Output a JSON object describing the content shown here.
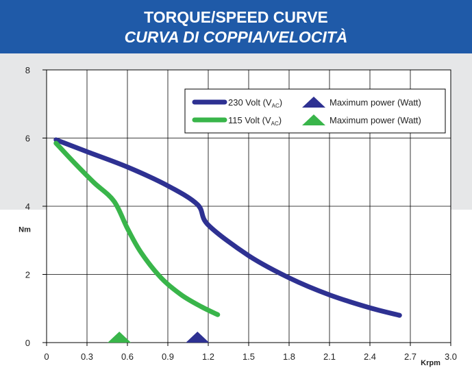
{
  "header": {
    "title": "TORQUE/SPEED CURVE",
    "subtitle": "CURVA DI COPPIA/VELOCITÀ",
    "background": "#1f5aa8"
  },
  "chart_data": {
    "type": "line",
    "title": "TORQUE/SPEED CURVE",
    "subtitle": "CURVA DI COPPIA/VELOCITÀ",
    "xlabel": "Krpm",
    "ylabel": "Nm",
    "xlim": [
      0,
      3.0
    ],
    "ylim": [
      0,
      8
    ],
    "x_ticks": [
      "0",
      "0.3",
      "0.6",
      "0.9",
      "1.2",
      "1.5",
      "1.8",
      "2.1",
      "2.4",
      "2.7",
      "3.0"
    ],
    "y_ticks": [
      "0",
      "2",
      "4",
      "6",
      "8"
    ],
    "grid": true,
    "legend_position": "top-right",
    "series": [
      {
        "name": "230 Volt (VAC)",
        "legend_main": "230 Volt (V",
        "legend_sub": "AC",
        "legend_close": ")",
        "color": "#2e3192",
        "x": [
          0.07,
          0.3,
          0.6,
          0.9,
          1.12,
          1.2,
          1.5,
          1.8,
          2.1,
          2.4,
          2.62
        ],
        "y": [
          5.95,
          5.6,
          5.15,
          4.6,
          4.05,
          3.45,
          2.55,
          1.9,
          1.4,
          1.02,
          0.8
        ],
        "max_power": {
          "label": "Maximum power (Watt)",
          "x": 1.12,
          "y": 0
        }
      },
      {
        "name": "115 Volt (VAC)",
        "legend_main": "115 Volt (V",
        "legend_sub": "AC",
        "legend_close": ")",
        "color": "#39b54a",
        "x": [
          0.07,
          0.2,
          0.35,
          0.5,
          0.6,
          0.7,
          0.85,
          1.0,
          1.15,
          1.27
        ],
        "y": [
          5.85,
          5.3,
          4.7,
          4.15,
          3.35,
          2.65,
          1.9,
          1.4,
          1.05,
          0.82
        ],
        "max_power": {
          "label": "Maximum power (Watt)",
          "x": 0.54,
          "y": 0
        }
      }
    ]
  }
}
